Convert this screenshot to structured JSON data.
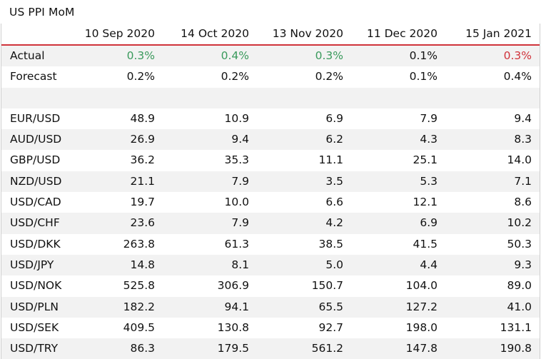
{
  "title": "US PPI MoM",
  "columns": [
    "10 Sep 2020",
    "14 Oct 2020",
    "13 Nov 2020",
    "11 Dec 2020",
    "15 Jan 2021"
  ],
  "colors": {
    "positive": "#3a9a5c",
    "negative": "#d0333b",
    "header_rule": "#d0333b",
    "shade": "#f2f2f2"
  },
  "actual": {
    "label": "Actual",
    "values": [
      "0.3%",
      "0.4%",
      "0.3%",
      "0.1%",
      "0.3%"
    ],
    "tones": [
      "positive",
      "positive",
      "positive",
      "neutral",
      "negative"
    ]
  },
  "forecast": {
    "label": "Forecast",
    "values": [
      "0.2%",
      "0.2%",
      "0.2%",
      "0.1%",
      "0.4%"
    ]
  },
  "pairs": [
    {
      "label": "EUR/USD",
      "values": [
        "48.9",
        "10.9",
        "6.9",
        "7.9",
        "9.4"
      ]
    },
    {
      "label": "AUD/USD",
      "values": [
        "26.9",
        "9.4",
        "6.2",
        "4.3",
        "8.3"
      ]
    },
    {
      "label": "GBP/USD",
      "values": [
        "36.2",
        "35.3",
        "11.1",
        "25.1",
        "14.0"
      ]
    },
    {
      "label": "NZD/USD",
      "values": [
        "21.1",
        "7.9",
        "3.5",
        "5.3",
        "7.1"
      ]
    },
    {
      "label": "USD/CAD",
      "values": [
        "19.7",
        "10.0",
        "6.6",
        "12.1",
        "8.6"
      ]
    },
    {
      "label": "USD/CHF",
      "values": [
        "23.6",
        "7.9",
        "4.2",
        "6.9",
        "10.2"
      ]
    },
    {
      "label": "USD/DKK",
      "values": [
        "263.8",
        "61.3",
        "38.5",
        "41.5",
        "50.3"
      ]
    },
    {
      "label": "USD/JPY",
      "values": [
        "14.8",
        "8.1",
        "5.0",
        "4.4",
        "9.3"
      ]
    },
    {
      "label": "USD/NOK",
      "values": [
        "525.8",
        "306.9",
        "150.7",
        "104.0",
        "89.0"
      ]
    },
    {
      "label": "USD/PLN",
      "values": [
        "182.2",
        "94.1",
        "65.5",
        "127.2",
        "41.0"
      ]
    },
    {
      "label": "USD/SEK",
      "values": [
        "409.5",
        "130.8",
        "92.7",
        "198.0",
        "131.1"
      ]
    },
    {
      "label": "USD/TRY",
      "values": [
        "86.3",
        "179.5",
        "561.2",
        "147.8",
        "190.8"
      ]
    }
  ]
}
